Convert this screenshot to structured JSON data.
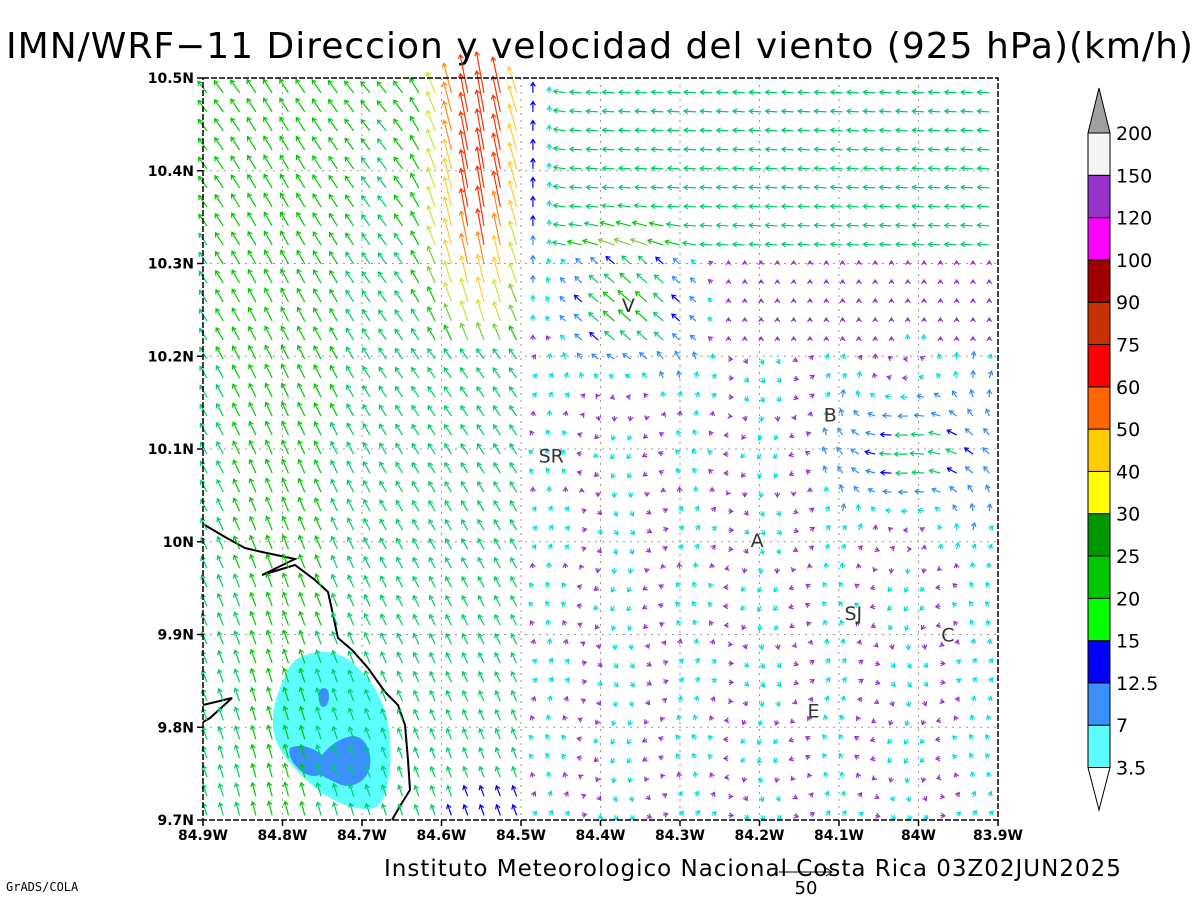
{
  "title": "IMN/WRF−11 Direccion y velocidad del viento (925 hPa)(km/h)",
  "credit": "Instituto Meteorologico Nacional Costa Rica 03Z02JUN2025",
  "software": "GrADS/COLA",
  "map": {
    "lon_range": [
      -84.9,
      -83.9
    ],
    "lat_range": [
      9.7,
      10.5
    ],
    "x_ticks": [
      {
        "lon": -84.9,
        "label": "84.9W"
      },
      {
        "lon": -84.8,
        "label": "84.8W"
      },
      {
        "lon": -84.7,
        "label": "84.7W"
      },
      {
        "lon": -84.6,
        "label": "84.6W"
      },
      {
        "lon": -84.5,
        "label": "84.5W"
      },
      {
        "lon": -84.4,
        "label": "84.4W"
      },
      {
        "lon": -84.3,
        "label": "84.3W"
      },
      {
        "lon": -84.2,
        "label": "84.2W"
      },
      {
        "lon": -84.1,
        "label": "84.1W"
      },
      {
        "lon": -84.0,
        "label": "84W"
      },
      {
        "lon": -83.9,
        "label": "83.9W"
      }
    ],
    "y_ticks": [
      {
        "lat": 10.5,
        "label": "10.5N"
      },
      {
        "lat": 10.4,
        "label": "10.4N"
      },
      {
        "lat": 10.3,
        "label": "10.3N"
      },
      {
        "lat": 10.2,
        "label": "10.2N"
      },
      {
        "lat": 10.1,
        "label": "10.1N"
      },
      {
        "lat": 10.0,
        "label": "10N"
      },
      {
        "lat": 9.9,
        "label": "9.9N"
      },
      {
        "lat": 9.8,
        "label": "9.8N"
      },
      {
        "lat": 9.7,
        "label": "9.7N"
      }
    ],
    "grid": "dotted",
    "city_labels": [
      {
        "text": "V",
        "lon": -84.365,
        "lat": 10.255
      },
      {
        "text": "SR",
        "lon": -84.462,
        "lat": 10.093
      },
      {
        "text": "B",
        "lon": -84.111,
        "lat": 10.137
      },
      {
        "text": "A",
        "lon": -84.203,
        "lat": 10.002
      },
      {
        "text": "SJ",
        "lon": -84.082,
        "lat": 9.923
      },
      {
        "text": "C",
        "lon": -83.963,
        "lat": 9.9
      },
      {
        "text": "E",
        "lon": -84.132,
        "lat": 9.818
      }
    ],
    "reference_vector": {
      "label": "50",
      "value_kmh": 50
    }
  },
  "colorbar": {
    "thresholds": [
      "3.5",
      "7",
      "12.5",
      "15",
      "20",
      "25",
      "30",
      "40",
      "50",
      "60",
      "75",
      "90",
      "100",
      "120",
      "150",
      "200"
    ],
    "colors": [
      "#ffffff",
      "#5cfdfd",
      "#3a91fd",
      "#0000fb",
      "#00ff00",
      "#00c800",
      "#009600",
      "#ffff00",
      "#ffcc00",
      "#ff6600",
      "#ff0000",
      "#c83200",
      "#a00000",
      "#ff00ff",
      "#9932cc",
      "#f5f5f5",
      "#a0a0a0"
    ]
  },
  "chart_data": {
    "type": "map",
    "title": "IMN/WRF−11 Direccion y velocidad del viento (925 hPa)(km/h)",
    "variable": "wind speed and direction at 925 hPa (km/h)",
    "shaded_speed_regions": [
      {
        "area": "around 84.75W 9.75N-9.88N",
        "range_kmh": "3.5-7"
      },
      {
        "area": "inner cores near 84.74W 9.76N and 84.73W 9.83N",
        "range_kmh": "7-12.5"
      }
    ],
    "strong_wind_core": {
      "area": "near 84.55W 10.3N-10.5N",
      "range_kmh": "50-75",
      "direction": "from south (northward flow)"
    }
  }
}
